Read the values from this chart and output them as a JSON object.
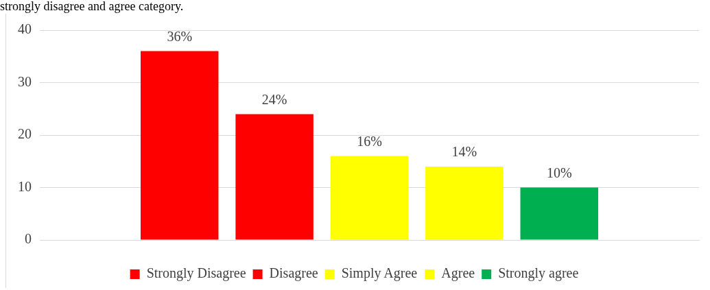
{
  "chart_data": {
    "type": "bar",
    "annotations": [
      "strongly disagree and agree category."
    ],
    "categories": [
      null
    ],
    "series": [
      {
        "name": "Strongly Disagree",
        "color": "#ff0000",
        "values": [
          36
        ],
        "value_labels": [
          "36%"
        ]
      },
      {
        "name": "Disagree",
        "color": "#ff0000",
        "values": [
          24
        ],
        "value_labels": [
          "24%"
        ]
      },
      {
        "name": "Simply Agree",
        "color": "#ffff00",
        "values": [
          16
        ],
        "value_labels": [
          "16%"
        ]
      },
      {
        "name": "Agree",
        "color": "#ffff00",
        "values": [
          14
        ],
        "value_labels": [
          "14%"
        ]
      },
      {
        "name": "Strongly agree",
        "color": "#00b050",
        "values": [
          10
        ],
        "value_labels": [
          "10%"
        ]
      }
    ],
    "ylim": [
      0,
      40
    ],
    "yticks": [
      0,
      10,
      20,
      30,
      40
    ],
    "grid": "y",
    "legend": "bottom"
  }
}
